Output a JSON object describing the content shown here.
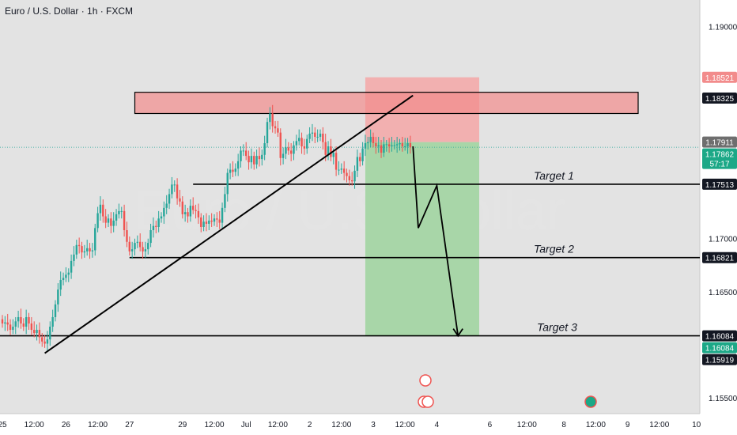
{
  "header": {
    "title": "Euro / U.S. Dollar · 1h · FXCM"
  },
  "watermark": "Euro / U.S. Dollar",
  "colors": {
    "background": "#e3e3e3",
    "bull": "#26a69a",
    "bear": "#ef5350",
    "resistance_zone": "#f28b8b",
    "stop_zone": "#f4a7a7",
    "target_zone": "#9ed49e",
    "line": "#000000"
  },
  "chart_data": {
    "type": "candlestick",
    "symbol": "Euro / U.S. Dollar",
    "timeframe": "1h",
    "broker": "FXCM",
    "y_ticks": [
      "1.19000",
      "1.17000",
      "1.16500",
      "1.15500"
    ],
    "ylim": [
      1.1535,
      1.1925
    ],
    "x_ticks": [
      {
        "label": "25",
        "i": 0
      },
      {
        "label": "12:00",
        "i": 12
      },
      {
        "label": "26",
        "i": 24
      },
      {
        "label": "12:00",
        "i": 36
      },
      {
        "label": "27",
        "i": 48
      },
      {
        "label": "29",
        "i": 68
      },
      {
        "label": "12:00",
        "i": 80
      },
      {
        "label": "Jul",
        "i": 92
      },
      {
        "label": "12:00",
        "i": 104
      },
      {
        "label": "2",
        "i": 116
      },
      {
        "label": "12:00",
        "i": 128
      },
      {
        "label": "3",
        "i": 140
      },
      {
        "label": "12:00",
        "i": 152
      },
      {
        "label": "4",
        "i": 164
      },
      {
        "label": "6",
        "i": 184
      },
      {
        "label": "12:00",
        "i": 198
      },
      {
        "label": "8",
        "i": 212
      },
      {
        "label": "12:00",
        "i": 224
      },
      {
        "label": "9",
        "i": 236
      },
      {
        "label": "12:00",
        "i": 248
      },
      {
        "label": "10",
        "i": 262
      }
    ],
    "price_badges": [
      {
        "value": "1.18521",
        "style": "stop"
      },
      {
        "value": "1.18325",
        "style": "dark"
      },
      {
        "value": "1.17911",
        "style": "grey"
      },
      {
        "value": "1.17862",
        "style": "current",
        "countdown": "57:17"
      },
      {
        "value": "1.17513",
        "style": "dark"
      },
      {
        "value": "1.16821",
        "style": "dark"
      },
      {
        "value": "1.16084",
        "style": "dark"
      },
      {
        "value": "1.16084",
        "style": "green"
      },
      {
        "value": "1.15919",
        "style": "dark"
      }
    ],
    "levels": [
      {
        "name": "Target 1",
        "price": 1.17513,
        "from_i": 72
      },
      {
        "name": "Target 2",
        "price": 1.16821,
        "from_i": 48
      },
      {
        "name": "Target 3",
        "price": 1.16084,
        "from_i": -5
      }
    ],
    "targets": [
      "Target 1",
      "Target 2",
      "Target 3"
    ],
    "resistance_zone": {
      "from": 1.1818,
      "to": 1.1838,
      "from_i": 50,
      "to_i": 240
    },
    "position": {
      "entry": 1.1791,
      "stop": 1.18521,
      "target": 1.16084,
      "from_i": 137,
      "to_i": 180
    },
    "trendline": {
      "p1": {
        "i": 16,
        "price": 1.1592
      },
      "p2": {
        "i": 155,
        "price": 1.1835
      }
    },
    "forecast_path": [
      {
        "i": 155,
        "price": 1.1787
      },
      {
        "i": 157,
        "price": 1.171
      },
      {
        "i": 164,
        "price": 1.175
      },
      {
        "i": 172,
        "price": 1.16084
      }
    ],
    "current_price": 1.17862,
    "ohlc_close": [
      1.162,
      1.1621,
      1.1619,
      1.1614,
      1.1617,
      1.1622,
      1.1626,
      1.162,
      1.1617,
      1.1626,
      1.162,
      1.1614,
      1.1611,
      1.1614,
      1.1607,
      1.1603,
      1.1601,
      1.1605,
      1.1617,
      1.1626,
      1.1638,
      1.1652,
      1.1661,
      1.1663,
      1.1666,
      1.1668,
      1.1679,
      1.1685,
      1.1694,
      1.1693,
      1.1687,
      1.1688,
      1.1691,
      1.1688,
      1.1689,
      1.171,
      1.1724,
      1.1732,
      1.1721,
      1.1715,
      1.1719,
      1.1712,
      1.1717,
      1.1723,
      1.1726,
      1.1726,
      1.1708,
      1.1697,
      1.1688,
      1.169,
      1.1696,
      1.1697,
      1.1692,
      1.1688,
      1.169,
      1.1696,
      1.1708,
      1.1712,
      1.1711,
      1.1719,
      1.1721,
      1.1729,
      1.1733,
      1.1742,
      1.1751,
      1.1751,
      1.1738,
      1.1735,
      1.1723,
      1.1725,
      1.1721,
      1.1731,
      1.1727,
      1.1726,
      1.172,
      1.1711,
      1.1716,
      1.1714,
      1.1717,
      1.1716,
      1.1719,
      1.1718,
      1.1715,
      1.1729,
      1.1742,
      1.1762,
      1.1765,
      1.1763,
      1.1766,
      1.1773,
      1.1783,
      1.1783,
      1.1778,
      1.1772,
      1.1778,
      1.177,
      1.1778,
      1.1775,
      1.1779,
      1.179,
      1.181,
      1.1818,
      1.1806,
      1.1804,
      1.18,
      1.1776,
      1.178,
      1.1786,
      1.1783,
      1.178,
      1.1788,
      1.1792,
      1.1795,
      1.1787,
      1.1785,
      1.1794,
      1.1799,
      1.18,
      1.1796,
      1.1796,
      1.1799,
      1.1791,
      1.1779,
      1.1787,
      1.1777,
      1.1781,
      1.1765,
      1.1765,
      1.1766,
      1.1762,
      1.1759,
      1.1755,
      1.1754,
      1.1764,
      1.1777,
      1.1773,
      1.1785,
      1.179,
      1.1791,
      1.1796,
      1.179,
      1.1787,
      1.1788,
      1.1781,
      1.1789,
      1.1789,
      1.1787,
      1.1788,
      1.1788,
      1.1789,
      1.179,
      1.1787,
      1.1787,
      1.179,
      1.17862
    ]
  }
}
